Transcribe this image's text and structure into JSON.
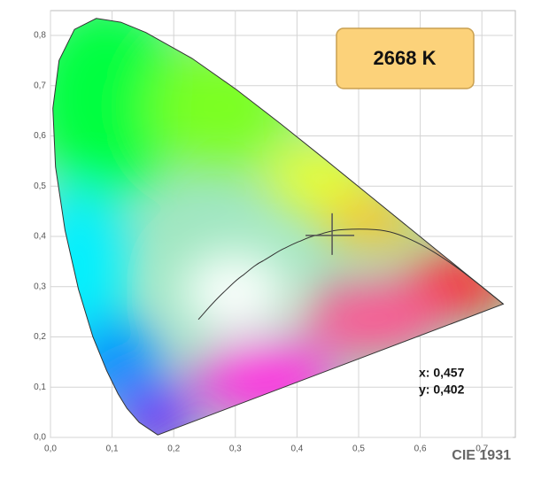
{
  "chart_data": {
    "type": "scatter",
    "title": "CIE 1931",
    "annotation": "2668 K",
    "x": [
      0.457
    ],
    "values": [
      0.402
    ],
    "x_labels": [
      "x: 0,457"
    ],
    "value_labels": [
      "y: 0,402"
    ],
    "color": "#555555",
    "xlim": [
      0,
      0.75
    ],
    "ylim": [
      0,
      0.85
    ],
    "xticks": [
      {
        "value": 0,
        "label": "0,0"
      },
      {
        "value": 0.1,
        "label": "0,1"
      },
      {
        "value": 0.2,
        "label": "0,2"
      },
      {
        "value": 0.3,
        "label": "0,3"
      },
      {
        "value": 0.4,
        "label": "0,4"
      },
      {
        "value": 0.5,
        "label": "0,5"
      },
      {
        "value": 0.6,
        "label": "0,6"
      },
      {
        "value": 0.7,
        "label": "0,7"
      }
    ],
    "yticks": [
      {
        "value": 0,
        "label": "0,0"
      },
      {
        "value": 0.1,
        "label": "0,1"
      },
      {
        "value": 0.2,
        "label": "0,2"
      },
      {
        "value": 0.3,
        "label": "0,3"
      },
      {
        "value": 0.4,
        "label": "0,4"
      },
      {
        "value": 0.5,
        "label": "0,5"
      },
      {
        "value": 0.6,
        "label": "0,6"
      },
      {
        "value": 0.7,
        "label": "0,7"
      },
      {
        "value": 0.8,
        "label": "0,8"
      }
    ],
    "grid": true
  }
}
